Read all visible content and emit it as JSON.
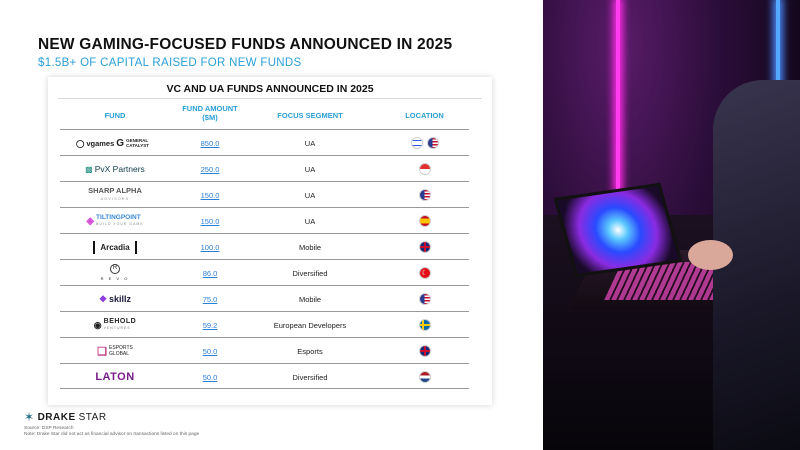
{
  "title": "NEW GAMING-FOCUSED FUNDS ANNOUNCED IN 2025",
  "subtitle": "$1.5B+ OF CAPITAL RAISED FOR NEW FUNDS",
  "table": {
    "title": "VC AND UA FUNDS ANNOUNCED IN 2025",
    "headers": {
      "fund": "FUND",
      "amount_line1": "FUND AMOUNT",
      "amount_line2": "($M)",
      "segment": "FOCUS SEGMENT",
      "location": "LOCATION"
    },
    "rows": [
      {
        "fund": "vgames",
        "fund2": "GENERAL CATALYST",
        "amount": "850.0",
        "segment": "UA",
        "flags": [
          "israel",
          "usa"
        ]
      },
      {
        "fund": "PvX Partners",
        "amount": "250.0",
        "segment": "UA",
        "flags": [
          "singapore"
        ]
      },
      {
        "fund": "SHARP ALPHA",
        "fund_sub": "ADVISORS",
        "amount": "150.0",
        "segment": "UA",
        "flags": [
          "usa"
        ]
      },
      {
        "fund": "TILTINGPOINT",
        "fund_sub": "BUILD YOUR GAME",
        "amount": "150.0",
        "segment": "UA",
        "flags": [
          "spain"
        ]
      },
      {
        "fund": "Arcadia",
        "amount": "100.0",
        "segment": "Mobile",
        "flags": [
          "uk"
        ]
      },
      {
        "fund": "R",
        "fund_sub": "R E V O",
        "amount": "86.0",
        "segment": "Diversified",
        "flags": [
          "turkey"
        ]
      },
      {
        "fund": "skillz",
        "amount": "75.0",
        "segment": "Mobile",
        "flags": [
          "usa"
        ]
      },
      {
        "fund": "BEHOLD",
        "fund_sub": "VENTURES",
        "amount": "59.2",
        "segment": "European Developers",
        "flags": [
          "sweden"
        ]
      },
      {
        "fund": "ESPORTS",
        "fund_sub": "GLOBAL",
        "amount": "50.0",
        "segment": "Esports",
        "flags": [
          "uk"
        ]
      },
      {
        "fund": "LATON",
        "amount": "50.0",
        "segment": "Diversified",
        "flags": [
          "netherlands"
        ]
      }
    ]
  },
  "footer": {
    "brand_a": "DRAKE",
    "brand_b": "STAR",
    "source": "Source: DSP Research",
    "note": "Note: Drake Star did not act as financial advisor on transactions listed on this page"
  },
  "colors": {
    "accent": "#2a9fd6",
    "link": "#2a7fd6"
  }
}
